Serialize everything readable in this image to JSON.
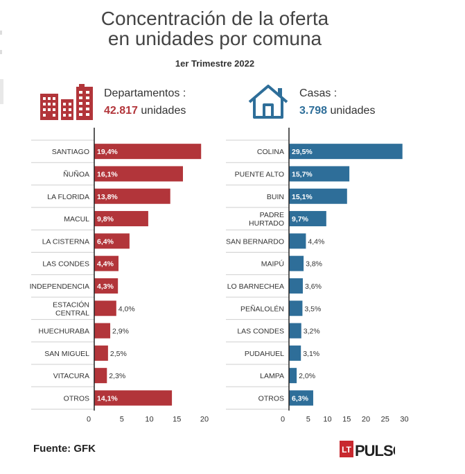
{
  "title_line1": "Concentración de la oferta",
  "title_line2": "en unidades por comuna",
  "subtitle": "1er Trimestre 2022",
  "left_header": {
    "label": "Departamentos :",
    "total": "42.817",
    "unit": "unidades"
  },
  "right_header": {
    "label": "Casas :",
    "total": "3.798",
    "unit": "unidades"
  },
  "source": "Fuente: GFK",
  "logo": {
    "badge": "LT",
    "name": "PULSO"
  },
  "colors": {
    "departamentos": "#b2353a",
    "casas": "#2e6e99",
    "text": "#333333",
    "grid": "#cfcfcf"
  },
  "chart_data": [
    {
      "type": "bar",
      "orientation": "horizontal",
      "categories": [
        "SANTIAGO",
        "ÑUÑOA",
        "LA FLORIDA",
        "MACUL",
        "LA CISTERNA",
        "LAS CONDES",
        "INDEPENDENCIA",
        "ESTACIÓN\nCENTRAL",
        "HUECHURABA",
        "SAN MIGUEL",
        "VITACURA",
        "OTROS"
      ],
      "values": [
        19.4,
        16.1,
        13.8,
        9.8,
        6.4,
        4.4,
        4.3,
        4.0,
        2.9,
        2.5,
        2.3,
        14.1
      ],
      "labels": [
        "19,4%",
        "16,1%",
        "13,8%",
        "9,8%",
        "6,4%",
        "4,4%",
        "4,3%",
        "4,0%",
        "2,9%",
        "2,5%",
        "2,3%",
        "14,1%"
      ],
      "xticks": [
        "0",
        "5",
        "10",
        "15",
        "20"
      ],
      "xlim": [
        0,
        20
      ],
      "color": "#b2353a"
    },
    {
      "type": "bar",
      "orientation": "horizontal",
      "categories": [
        "COLINA",
        "PUENTE ALTO",
        "BUIN",
        "PADRE\nHURTADO",
        "SAN BERNARDO",
        "MAIPÚ",
        "LO BARNECHEA",
        "PEÑALOLÉN",
        "LAS CONDES",
        "PUDAHUEL",
        "LAMPA",
        "OTROS"
      ],
      "values": [
        29.5,
        15.7,
        15.1,
        9.7,
        4.4,
        3.8,
        3.6,
        3.5,
        3.2,
        3.1,
        2.0,
        6.3
      ],
      "labels": [
        "29,5%",
        "15,7%",
        "15,1%",
        "9,7%",
        "4,4%",
        "3,8%",
        "3,6%",
        "3,5%",
        "3,2%",
        "3,1%",
        "2,0%",
        "6,3%"
      ],
      "xticks": [
        "0",
        "5",
        "10",
        "15",
        "20",
        "25",
        "30"
      ],
      "xlim": [
        0,
        30
      ],
      "color": "#2e6e99"
    }
  ]
}
